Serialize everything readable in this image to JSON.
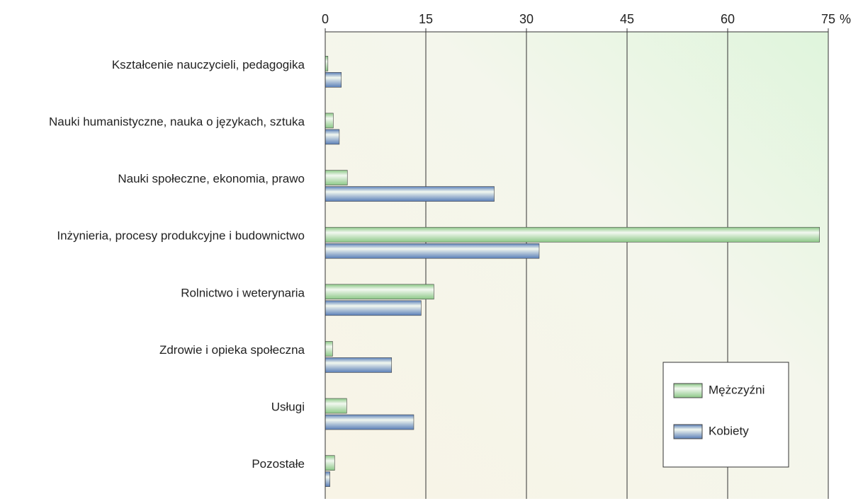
{
  "chart_data": {
    "type": "hbar",
    "x_label": "%",
    "categories": [
      "Kształcenie nauczycieli, pedagogika",
      "Nauki humanistyczne, nauka o językach, sztuka",
      "Nauki społeczne, ekonomia, prawo",
      "Inżynieria, procesy produkcyjne i budownictwo",
      "Rolnictwo i weterynaria",
      "Zdrowie i opieka społeczna",
      "Usługi",
      "Pozostałe"
    ],
    "series": [
      {
        "name": "Mężczyźni",
        "color": "#8cc887",
        "values": [
          0.4,
          1.2,
          3.3,
          73.7,
          16.2,
          1.1,
          3.2,
          1.4
        ]
      },
      {
        "name": "Kobiety",
        "color": "#5a7fb8",
        "values": [
          2.4,
          2.1,
          25.2,
          31.9,
          14.3,
          9.9,
          13.2,
          0.7
        ]
      }
    ],
    "xlim": [
      0,
      75
    ],
    "xticks": [
      0,
      15,
      30,
      45,
      60,
      75
    ],
    "grid": true,
    "legend": "lower right"
  }
}
